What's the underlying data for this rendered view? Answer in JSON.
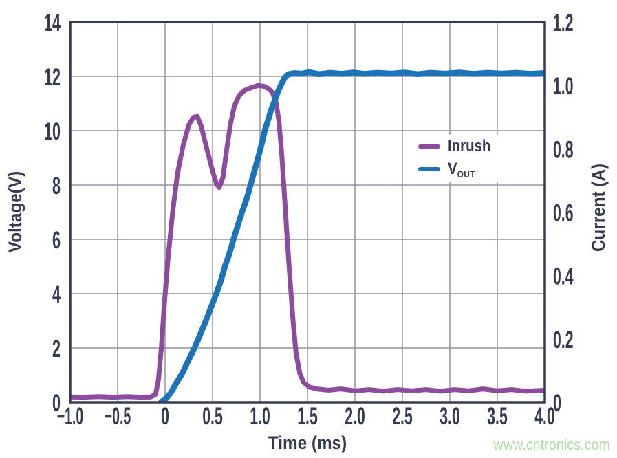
{
  "watermark": {
    "text": "www.cntronics.com",
    "color": "#b2dcac"
  },
  "legend": {
    "items": [
      {
        "label": "Inrush",
        "subscript": "",
        "color": "#8d4b9e"
      },
      {
        "label": "V",
        "subscript": "OUT",
        "color": "#1d73b8"
      }
    ]
  },
  "colors": {
    "inrush": "#8d4b9e",
    "vout": "#1d73b8",
    "axis_border": "#373a50",
    "grid": "#9193a3",
    "tick_text": "#363a4e"
  },
  "chart_data": {
    "type": "line",
    "title": "",
    "xlabel": "Time (ms)",
    "ylabel_left": "Voltage(V)",
    "ylabel_right": "Current (A)",
    "xlim": [
      -1.0,
      4.0
    ],
    "ylim_left": [
      0,
      14
    ],
    "ylim_right": [
      0,
      1.2
    ],
    "grid": true,
    "legend_position": "right-middle",
    "xticks": [
      -1.0,
      -0.5,
      0,
      0.5,
      1.0,
      1.5,
      2.0,
      2.5,
      3.0,
      3.5,
      4.0
    ],
    "xtick_labels": [
      "−1.0",
      "−0.5",
      "0",
      "0.5",
      "1.0",
      "1.5",
      "2.0",
      "2.5",
      "3.0",
      "3.5",
      "4.0"
    ],
    "yticks_left": [
      0,
      2,
      4,
      6,
      8,
      10,
      12,
      14
    ],
    "ytick_left_labels": [
      "0",
      "2",
      "4",
      "6",
      "8",
      "10",
      "12",
      "14"
    ],
    "yticks_right": [
      0,
      0.2,
      0.4,
      0.6,
      0.8,
      1.0,
      1.2
    ],
    "ytick_right_labels": [
      "0",
      "0.2",
      "0.4",
      "0.6",
      "0.8",
      "1.0",
      "1.2"
    ],
    "series": [
      {
        "name": "Inrush",
        "axis": "right",
        "unit": "A",
        "color": "#8d4b9e",
        "points": [
          [
            -1.0,
            0.017
          ],
          [
            -0.85,
            0.016
          ],
          [
            -0.7,
            0.018
          ],
          [
            -0.55,
            0.016
          ],
          [
            -0.4,
            0.018
          ],
          [
            -0.25,
            0.016
          ],
          [
            -0.15,
            0.017
          ],
          [
            -0.1,
            0.025
          ],
          [
            -0.07,
            0.07
          ],
          [
            -0.04,
            0.17
          ],
          [
            -0.01,
            0.3
          ],
          [
            0.03,
            0.45
          ],
          [
            0.08,
            0.6
          ],
          [
            0.13,
            0.72
          ],
          [
            0.19,
            0.81
          ],
          [
            0.25,
            0.875
          ],
          [
            0.3,
            0.9
          ],
          [
            0.34,
            0.902
          ],
          [
            0.38,
            0.872
          ],
          [
            0.44,
            0.8
          ],
          [
            0.5,
            0.73
          ],
          [
            0.54,
            0.69
          ],
          [
            0.57,
            0.678
          ],
          [
            0.61,
            0.71
          ],
          [
            0.65,
            0.8
          ],
          [
            0.69,
            0.88
          ],
          [
            0.73,
            0.935
          ],
          [
            0.78,
            0.968
          ],
          [
            0.84,
            0.985
          ],
          [
            0.91,
            0.993
          ],
          [
            0.98,
            1.0
          ],
          [
            1.04,
            0.997
          ],
          [
            1.09,
            0.99
          ],
          [
            1.13,
            0.978
          ],
          [
            1.17,
            0.945
          ],
          [
            1.2,
            0.885
          ],
          [
            1.23,
            0.78
          ],
          [
            1.26,
            0.64
          ],
          [
            1.29,
            0.5
          ],
          [
            1.32,
            0.37
          ],
          [
            1.35,
            0.25
          ],
          [
            1.38,
            0.155
          ],
          [
            1.42,
            0.09
          ],
          [
            1.46,
            0.062
          ],
          [
            1.52,
            0.048
          ],
          [
            1.6,
            0.042
          ],
          [
            1.72,
            0.038
          ],
          [
            1.85,
            0.042
          ],
          [
            2.0,
            0.036
          ],
          [
            2.15,
            0.04
          ],
          [
            2.3,
            0.035
          ],
          [
            2.45,
            0.04
          ],
          [
            2.6,
            0.036
          ],
          [
            2.75,
            0.04
          ],
          [
            2.9,
            0.035
          ],
          [
            3.05,
            0.04
          ],
          [
            3.2,
            0.036
          ],
          [
            3.35,
            0.042
          ],
          [
            3.5,
            0.036
          ],
          [
            3.65,
            0.04
          ],
          [
            3.8,
            0.035
          ],
          [
            4.0,
            0.038
          ]
        ]
      },
      {
        "name": "V_OUT",
        "axis": "left",
        "unit": "V",
        "color": "#1d73b8",
        "points": [
          [
            -0.04,
            0.02
          ],
          [
            0.0,
            0.1
          ],
          [
            0.06,
            0.35
          ],
          [
            0.12,
            0.72
          ],
          [
            0.18,
            1.05
          ],
          [
            0.24,
            1.5
          ],
          [
            0.31,
            2.0
          ],
          [
            0.37,
            2.5
          ],
          [
            0.43,
            3.0
          ],
          [
            0.49,
            3.55
          ],
          [
            0.54,
            4.0
          ],
          [
            0.59,
            4.5
          ],
          [
            0.63,
            5.0
          ],
          [
            0.68,
            5.5
          ],
          [
            0.72,
            6.0
          ],
          [
            0.77,
            6.55
          ],
          [
            0.81,
            7.0
          ],
          [
            0.86,
            7.5
          ],
          [
            0.9,
            8.0
          ],
          [
            0.94,
            8.5
          ],
          [
            0.98,
            9.0
          ],
          [
            1.02,
            9.55
          ],
          [
            1.05,
            10.0
          ],
          [
            1.09,
            10.45
          ],
          [
            1.12,
            10.8
          ],
          [
            1.16,
            11.15
          ],
          [
            1.19,
            11.45
          ],
          [
            1.23,
            11.75
          ],
          [
            1.26,
            11.95
          ],
          [
            1.3,
            12.08
          ],
          [
            1.36,
            12.12
          ],
          [
            1.44,
            12.1
          ],
          [
            1.52,
            12.15
          ],
          [
            1.62,
            12.08
          ],
          [
            1.74,
            12.13
          ],
          [
            1.86,
            12.09
          ],
          [
            1.98,
            12.14
          ],
          [
            2.1,
            12.09
          ],
          [
            2.24,
            12.13
          ],
          [
            2.38,
            12.1
          ],
          [
            2.52,
            12.14
          ],
          [
            2.66,
            12.08
          ],
          [
            2.8,
            12.13
          ],
          [
            2.95,
            12.1
          ],
          [
            3.1,
            12.14
          ],
          [
            3.25,
            12.09
          ],
          [
            3.4,
            12.13
          ],
          [
            3.55,
            12.1
          ],
          [
            3.7,
            12.13
          ],
          [
            3.85,
            12.09
          ],
          [
            4.0,
            12.12
          ]
        ]
      }
    ]
  }
}
